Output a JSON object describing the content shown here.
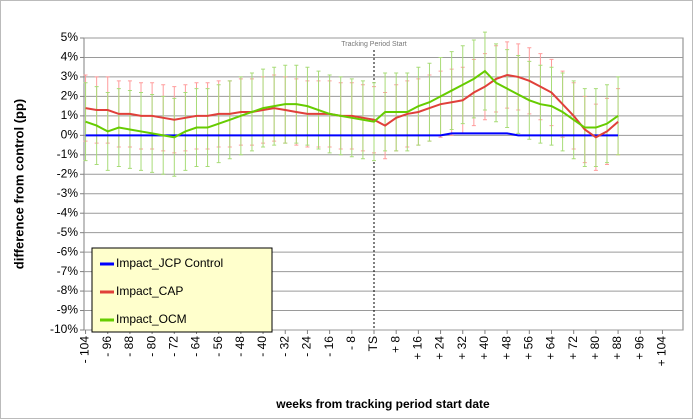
{
  "chart_data": {
    "type": "line",
    "ylabel": "difference from control (pp)",
    "xlabel": "weeks from tracking period start date",
    "annotations": [
      {
        "text": "Tracking Period Start",
        "x": 0
      }
    ],
    "x": [
      -104,
      -100,
      -96,
      -92,
      -88,
      -84,
      -80,
      -76,
      -72,
      -68,
      -64,
      -60,
      -56,
      -52,
      -48,
      -44,
      -40,
      -36,
      -32,
      -28,
      -24,
      -20,
      -16,
      -12,
      -8,
      -4,
      0,
      4,
      8,
      12,
      16,
      20,
      24,
      28,
      32,
      36,
      40,
      44,
      48,
      52,
      56,
      60,
      64,
      68,
      72,
      76,
      80,
      84,
      88
    ],
    "series": [
      {
        "name": "Impact_JCP Control",
        "color": "#0000ff",
        "values": [
          0,
          0,
          0,
          0,
          0,
          0,
          0,
          0,
          0,
          0,
          0,
          0,
          0,
          0,
          0,
          0,
          0,
          0,
          0,
          0,
          0,
          0,
          0,
          0,
          0,
          0,
          0,
          0,
          0,
          0,
          0,
          0,
          0,
          0.1,
          0.1,
          0.1,
          0.1,
          0.1,
          0.1,
          0,
          0,
          0,
          0,
          0,
          0,
          0,
          0,
          0,
          0
        ]
      },
      {
        "name": "Impact_CAP",
        "color": "#e0403a",
        "error_color": "#ff9c9c",
        "values": [
          1.4,
          1.3,
          1.3,
          1.1,
          1.1,
          1.0,
          1.0,
          0.9,
          0.8,
          0.9,
          1.0,
          1.0,
          1.1,
          1.1,
          1.2,
          1.2,
          1.3,
          1.4,
          1.3,
          1.2,
          1.1,
          1.1,
          1.1,
          1.0,
          1.0,
          0.9,
          0.8,
          0.5,
          0.9,
          1.1,
          1.2,
          1.4,
          1.6,
          1.7,
          1.8,
          2.2,
          2.5,
          2.9,
          3.1,
          3.0,
          2.8,
          2.5,
          2.2,
          1.6,
          1.0,
          0.3,
          -0.1,
          0.2,
          0.7
        ],
        "errors": [
          1.7,
          1.7,
          1.7,
          1.7,
          1.7,
          1.7,
          1.7,
          1.7,
          1.7,
          1.7,
          1.7,
          1.7,
          1.7,
          1.7,
          1.7,
          1.7,
          1.7,
          1.7,
          1.7,
          1.7,
          1.7,
          1.7,
          1.7,
          1.7,
          1.7,
          1.7,
          1.7,
          1.7,
          1.7,
          1.7,
          1.7,
          1.7,
          1.7,
          1.7,
          1.7,
          1.7,
          1.7,
          1.7,
          1.7,
          1.7,
          1.7,
          1.7,
          1.7,
          1.7,
          1.7,
          1.7,
          1.7,
          1.7,
          1.7
        ]
      },
      {
        "name": "Impact_OCM",
        "color": "#66cc00",
        "error_color": "#a8dc78",
        "values": [
          0.7,
          0.5,
          0.2,
          0.4,
          0.3,
          0.2,
          0.1,
          0.0,
          -0.1,
          0.2,
          0.4,
          0.4,
          0.6,
          0.8,
          1.0,
          1.2,
          1.4,
          1.5,
          1.6,
          1.6,
          1.5,
          1.3,
          1.1,
          1.0,
          0.9,
          0.8,
          0.7,
          1.2,
          1.2,
          1.2,
          1.5,
          1.7,
          2.0,
          2.3,
          2.6,
          2.9,
          3.3,
          2.7,
          2.4,
          2.1,
          1.8,
          1.6,
          1.5,
          1.2,
          0.8,
          0.4,
          0.4,
          0.6,
          1.0
        ],
        "errors": [
          2.0,
          2.0,
          2.0,
          2.0,
          2.0,
          2.0,
          2.0,
          2.0,
          2.0,
          2.0,
          2.0,
          2.0,
          2.0,
          2.0,
          2.0,
          2.0,
          2.0,
          2.0,
          2.0,
          2.0,
          2.0,
          2.0,
          2.0,
          2.0,
          2.0,
          2.0,
          2.0,
          2.0,
          2.0,
          2.0,
          2.0,
          2.0,
          2.0,
          2.0,
          2.0,
          2.0,
          2.0,
          2.0,
          2.0,
          2.0,
          2.0,
          2.0,
          2.0,
          2.0,
          2.0,
          2.0,
          2.0,
          2.0,
          2.0
        ]
      }
    ],
    "xlim": [
      -106,
      106
    ],
    "xticks": [
      {
        "value": -104,
        "label": "- 104"
      },
      {
        "value": -96,
        "label": "- 96"
      },
      {
        "value": -88,
        "label": "- 88"
      },
      {
        "value": -80,
        "label": "- 80"
      },
      {
        "value": -72,
        "label": "- 72"
      },
      {
        "value": -64,
        "label": "- 64"
      },
      {
        "value": -56,
        "label": "- 56"
      },
      {
        "value": -48,
        "label": "- 48"
      },
      {
        "value": -40,
        "label": "- 40"
      },
      {
        "value": -32,
        "label": "- 32"
      },
      {
        "value": -24,
        "label": "- 24"
      },
      {
        "value": -16,
        "label": "- 16"
      },
      {
        "value": -8,
        "label": "- 8"
      },
      {
        "value": 0,
        "label": "TS"
      },
      {
        "value": 8,
        "label": "+ 8"
      },
      {
        "value": 16,
        "label": "+ 16"
      },
      {
        "value": 24,
        "label": "+ 24"
      },
      {
        "value": 32,
        "label": "+ 32"
      },
      {
        "value": 40,
        "label": "+ 40"
      },
      {
        "value": 48,
        "label": "+ 48"
      },
      {
        "value": 56,
        "label": "+ 56"
      },
      {
        "value": 64,
        "label": "+ 64"
      },
      {
        "value": 72,
        "label": "+ 72"
      },
      {
        "value": 80,
        "label": "+ 80"
      },
      {
        "value": 88,
        "label": "+ 88"
      },
      {
        "value": 96,
        "label": "+ 96"
      },
      {
        "value": 104,
        "label": "+ 104"
      }
    ],
    "ylim": [
      -10,
      5
    ],
    "yticks": [
      {
        "value": -10,
        "label": "-10%"
      },
      {
        "value": -9,
        "label": "-9%"
      },
      {
        "value": -8,
        "label": "-8%"
      },
      {
        "value": -7,
        "label": "-7%"
      },
      {
        "value": -6,
        "label": "-6%"
      },
      {
        "value": -5,
        "label": "-5%"
      },
      {
        "value": -4,
        "label": "-4%"
      },
      {
        "value": -3,
        "label": "-3%"
      },
      {
        "value": -2,
        "label": "-2%"
      },
      {
        "value": -1,
        "label": "-1%"
      },
      {
        "value": 0,
        "label": "0%"
      },
      {
        "value": 1,
        "label": "1%"
      },
      {
        "value": 2,
        "label": "2%"
      },
      {
        "value": 3,
        "label": "3%"
      },
      {
        "value": 4,
        "label": "4%"
      },
      {
        "value": 5,
        "label": "5%"
      }
    ],
    "grid": true,
    "legend": "lower left",
    "legend_color": "#ffffcc"
  }
}
